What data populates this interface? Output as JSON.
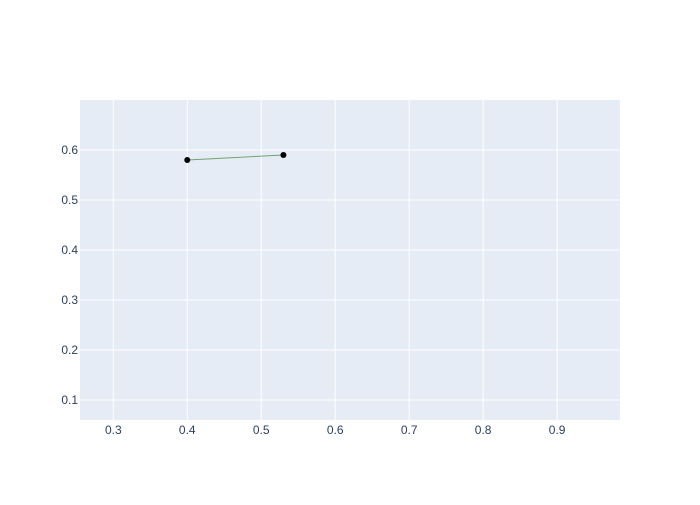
{
  "chart_data": {
    "type": "line",
    "title": "",
    "xlabel": "",
    "ylabel": "",
    "xlim": [
      0.255,
      0.985
    ],
    "ylim": [
      0.06,
      0.7
    ],
    "xticks": [
      0.3,
      0.4,
      0.5,
      0.6,
      0.7,
      0.8,
      0.9
    ],
    "yticks": [
      0.1,
      0.2,
      0.3,
      0.4,
      0.5,
      0.6
    ],
    "xtick_labels": [
      "0.3",
      "0.4",
      "0.5",
      "0.6",
      "0.7",
      "0.8",
      "0.9"
    ],
    "ytick_labels": [
      "0.1",
      "0.2",
      "0.3",
      "0.4",
      "0.5",
      "0.6"
    ],
    "grid": true,
    "legend": "none",
    "series": [
      {
        "x": [
          0.4,
          0.53
        ],
        "y": [
          0.58,
          0.59
        ],
        "line_color": "#6fa56f",
        "marker_color": "#000000",
        "mode": "lines+markers"
      }
    ],
    "colors": {
      "plot_background": "#e5ecf6",
      "grid": "#ffffff",
      "tick_text": "#2a3f5f"
    }
  }
}
